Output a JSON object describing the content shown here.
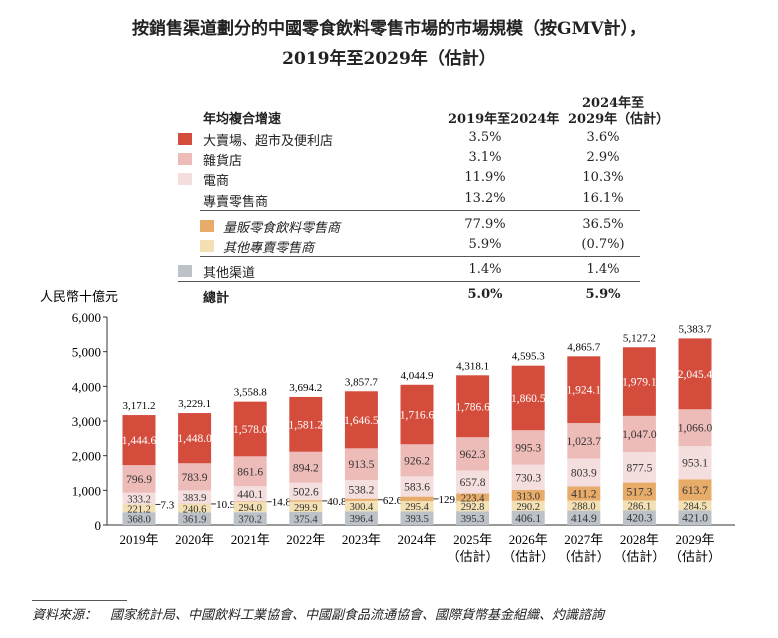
{
  "title_line1": "按銷售渠道劃分的中國零食飲料零售市場的市場規模（按GMV計），",
  "title_line2": "2019年至2029年（估計）",
  "legend": {
    "header_label": "年均複合增速",
    "col1_header": "2019年至2024年",
    "col2_header_line1": "2024年至",
    "col2_header_line2": "2029年（估計）",
    "rows": [
      {
        "label": "大賣場、超市及便利店",
        "color": "#d44c3c",
        "c1": "3.5%",
        "c2": "3.6%"
      },
      {
        "label": "雜貨店",
        "color": "#eebcb8",
        "c1": "3.1%",
        "c2": "2.9%"
      },
      {
        "label": "電商",
        "color": "#f4dede",
        "c1": "11.9%",
        "c2": "10.3%"
      },
      {
        "label": "專賣零售商",
        "color": "",
        "c1": "13.2%",
        "c2": "16.1%"
      },
      {
        "label": "量販零食飲料零售商",
        "color": "#e8ac6a",
        "c1": "77.9%",
        "c2": "36.5%"
      },
      {
        "label": "其他專賣零售商",
        "color": "#f3e0b4",
        "c1": "5.9%",
        "c2": "(0.7%)"
      },
      {
        "label": "其他渠道",
        "color": "#bcc2c8",
        "c1": "1.4%",
        "c2": "1.4%"
      },
      {
        "label": "總計",
        "color": "",
        "c1": "5.0%",
        "c2": "5.9%"
      }
    ]
  },
  "source": "資料來源：　國家統計局、中國飲料工業協會、中國副食品流通協會、國際貨幣基金組織、灼識諮詢",
  "chart_data": {
    "type": "bar",
    "stacked": true,
    "ylabel": "人民幣十億元",
    "ylim": [
      0,
      6000
    ],
    "yticks": [
      "0",
      "1,000",
      "2,000",
      "3,000",
      "4,000",
      "5,000",
      "6,000"
    ],
    "categories": [
      "2019年",
      "2020年",
      "2021年",
      "2022年",
      "2023年",
      "2024年",
      "2025年\n（估計）",
      "2026年\n（估計）",
      "2027年\n（估計）",
      "2028年\n（估計）",
      "2029年\n（估計）"
    ],
    "totals": [
      "3,171.2",
      "3,229.1",
      "3,558.8",
      "3,694.2",
      "3,857.7",
      "4,044.9",
      "4,318.1",
      "4,595.3",
      "4,865.7",
      "5,127.2",
      "5,383.7"
    ],
    "series": [
      {
        "name": "其他渠道",
        "color": "#bcc2c8",
        "values": [
          368.0,
          361.9,
          370.2,
          375.4,
          396.4,
          393.5,
          395.3,
          406.1,
          414.9,
          420.3,
          421.0
        ]
      },
      {
        "name": "其他專賣零售商",
        "color": "#f3e0b4",
        "values": [
          221.2,
          240.6,
          294.0,
          299.9,
          300.4,
          295.4,
          292.8,
          290.2,
          288.0,
          286.1,
          284.5
        ]
      },
      {
        "name": "量販零食飲料零售商",
        "color": "#e8ac6a",
        "values": [
          7.3,
          10.9,
          14.8,
          40.8,
          62.6,
          129.7,
          223.4,
          313.0,
          411.2,
          517.3,
          613.7
        ]
      },
      {
        "name": "電商",
        "color": "#f4dede",
        "values": [
          333.2,
          383.9,
          440.1,
          502.6,
          538.2,
          583.6,
          657.8,
          730.3,
          803.9,
          877.5,
          953.1
        ]
      },
      {
        "name": "雜貨店",
        "color": "#eebcb8",
        "values": [
          796.9,
          783.9,
          861.6,
          894.2,
          913.5,
          926.2,
          962.3,
          995.3,
          1023.7,
          1047.0,
          1066.0
        ]
      },
      {
        "name": "大賣場、超市及便利店",
        "color": "#d44c3c",
        "values": [
          1444.6,
          1448.0,
          1578.0,
          1581.2,
          1646.5,
          1716.6,
          1786.6,
          1860.5,
          1924.1,
          1979.1,
          2045.4
        ]
      }
    ]
  }
}
